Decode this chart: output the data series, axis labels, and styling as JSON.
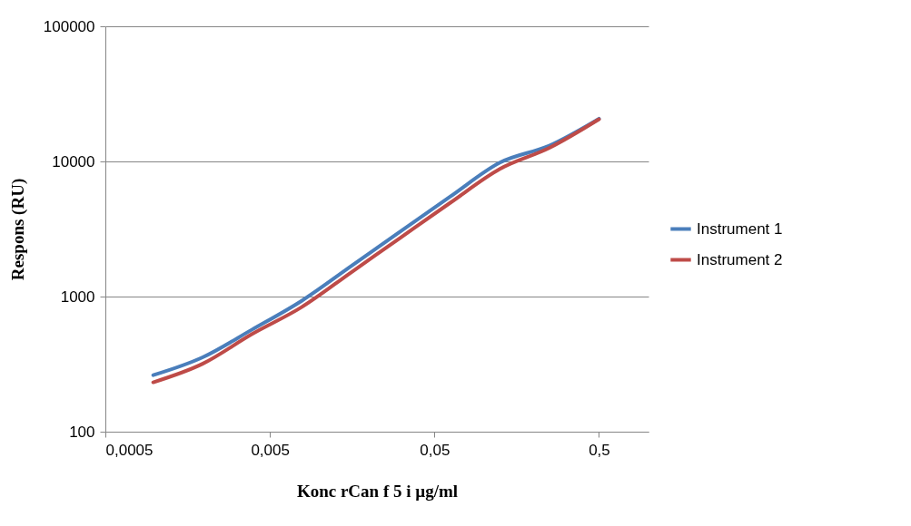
{
  "chart_data": {
    "type": "line",
    "xlabel": "Konc rCan f 5 i µg/ml",
    "ylabel": "Respons (RU)",
    "x": [
      0.000977,
      0.00195,
      0.0039,
      0.0078,
      0.0156,
      0.03125,
      0.0625,
      0.125,
      0.25,
      0.5
    ],
    "series": [
      {
        "name": "Instrument 1",
        "color": "#4a7ebb",
        "values": [
          262,
          355,
          570,
          930,
          1680,
          3050,
          5500,
          9800,
          13100,
          20700
        ]
      },
      {
        "name": "Instrument 2",
        "color": "#be4b48",
        "values": [
          232,
          318,
          528,
          835,
          1510,
          2740,
          4950,
          8800,
          12600,
          20500
        ]
      }
    ],
    "log": "xy",
    "xlim": [
      0.0005,
      1
    ],
    "ylim": [
      100,
      100000
    ],
    "xticks": [
      {
        "value": 0.0005,
        "label": "0,0005"
      },
      {
        "value": 0.005,
        "label": "0,005"
      },
      {
        "value": 0.05,
        "label": "0,05"
      },
      {
        "value": 0.5,
        "label": "0,5"
      }
    ],
    "yticks": [
      100,
      1000,
      10000,
      100000
    ],
    "grid": "y",
    "legend": "right",
    "marker": "none",
    "line_style": "solid"
  }
}
